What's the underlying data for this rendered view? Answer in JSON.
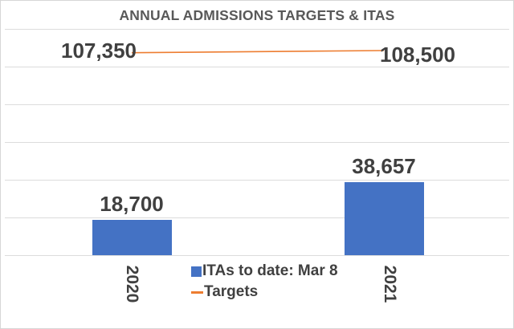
{
  "title": "ANNUAL ADMISSIONS TARGETS & ITAS",
  "colors": {
    "bar": "#4472C4",
    "line": "#ED7D31",
    "label_text": "#404040",
    "title_text": "#595959",
    "gridline": "#DCDCDC",
    "border": "#D6D6D6",
    "background": "#FFFFFF"
  },
  "legend": [
    {
      "label": "ITAs to date: Mar 8",
      "swatch": "square",
      "color": "#4472C4"
    },
    {
      "label": "Targets",
      "swatch": "line",
      "color": "#ED7D31"
    }
  ],
  "chart_data": {
    "type": "bar",
    "subtype": "bar-line-combo",
    "title": "ANNUAL ADMISSIONS TARGETS & ITAS",
    "categories": [
      "2020",
      "2021"
    ],
    "series": [
      {
        "name": "ITAs to date: Mar 8",
        "type": "bar",
        "values": [
          18700,
          38657
        ],
        "labels": [
          "18,700",
          "38,657"
        ],
        "color": "#4472C4"
      },
      {
        "name": "Targets",
        "type": "line",
        "values": [
          107350,
          108500
        ],
        "labels": [
          "107,350",
          "108,500"
        ],
        "color": "#ED7D31"
      }
    ],
    "xlabel": "",
    "ylabel": "",
    "ylim": [
      0,
      120000
    ],
    "gridline_step": 20000,
    "grid": true,
    "y_axis_labels_visible": false,
    "category_label_rotation_deg": 90,
    "legend_position": "bottom-center"
  }
}
